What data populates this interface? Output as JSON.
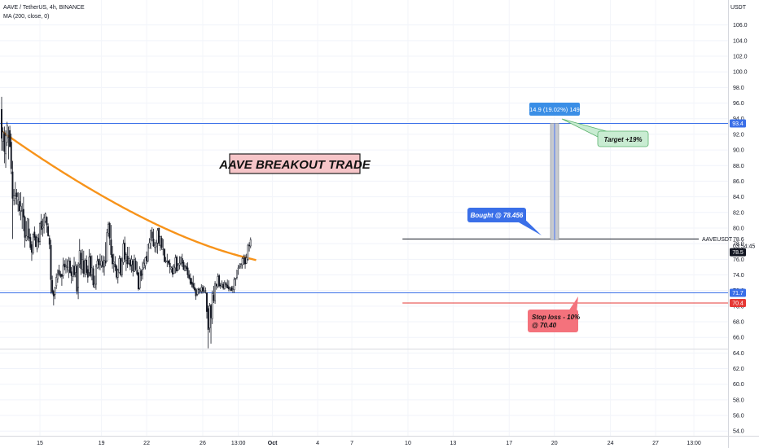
{
  "header": {
    "symbol_line": "AAVE / TetherUS, 4h, BINANCE",
    "indicator_line": "MA (200, close, 0)",
    "currency": "USDT"
  },
  "chart_data": {
    "type": "candlestick",
    "symbol": "AAVEUSDT",
    "title": "AAVE BREAKOUT TRADE",
    "ylim": [
      53.4,
      109.2
    ],
    "y_ticks": [
      54,
      56,
      58,
      60,
      62,
      64,
      66,
      68,
      70,
      72,
      74,
      76,
      78,
      80,
      82,
      84,
      86,
      88,
      90,
      92,
      94,
      96,
      98,
      100,
      102,
      104,
      106
    ],
    "x_tick_labels": [
      "15",
      "19",
      "22",
      "26",
      "13:00",
      "Oct",
      "4",
      "7",
      "10",
      "13",
      "17",
      "20",
      "24",
      "27",
      "13:00"
    ],
    "x_tick_bar_index": [
      28,
      73,
      106,
      147,
      173,
      198,
      231,
      256,
      297,
      330,
      371,
      404,
      445,
      478,
      506
    ],
    "moving_average": {
      "label": "MA (200, close, 0)",
      "color": "#f7931a",
      "start_value": 92.4,
      "end_value": 75.9
    },
    "price_levels": [
      {
        "value": 93.4,
        "label": "93.4",
        "color": "#3a6fe8"
      },
      {
        "value": 71.7,
        "label": "71.7",
        "color": "#3a6fe8"
      },
      {
        "value": 70.4,
        "label": "70.4",
        "color": "#e53935"
      },
      {
        "value": 78.6,
        "label": "78.6",
        "color": "#131722"
      }
    ],
    "last_price": {
      "value": 78.5,
      "label": "78.5",
      "symbol": "AAVEUSDT",
      "countdown": "03:54:45"
    },
    "measure": {
      "from": 78.5,
      "to": 93.4,
      "label": "14.9 (19.02%) 149"
    },
    "annotations": {
      "bought": "Bought  @ 78.456",
      "target": "Target  +19%",
      "stop_line1": "Stop loss - 10%",
      "stop_line2": "@ 70.40"
    },
    "candles": [
      [
        95.2,
        96.8,
        89.9,
        91.5
      ],
      [
        91.1,
        92.9,
        89.9,
        92.3
      ],
      [
        92.1,
        93.0,
        88.3,
        89.8
      ],
      [
        89.5,
        92.5,
        87.7,
        91.8
      ],
      [
        91.0,
        93.6,
        90.5,
        93.2
      ],
      [
        91.6,
        93.0,
        88.8,
        91.6
      ],
      [
        92.5,
        93.1,
        90.4,
        90.4
      ],
      [
        91.0,
        92.1,
        86.9,
        87.6
      ],
      [
        87.2,
        88.6,
        78.6,
        83.8
      ],
      [
        83.5,
        85.0,
        82.9,
        84.1
      ],
      [
        83.8,
        85.9,
        83.0,
        84.1
      ],
      [
        84.5,
        85.0,
        83.0,
        84.0
      ],
      [
        83.0,
        84.6,
        82.1,
        83.6
      ],
      [
        83.4,
        84.5,
        81.6,
        82.2
      ],
      [
        82.2,
        84.6,
        81.0,
        82.8
      ],
      [
        82.1,
        83.2,
        79.9,
        82.2
      ],
      [
        82.4,
        84.0,
        79.6,
        81.4
      ],
      [
        81.4,
        81.6,
        77.5,
        78.8
      ],
      [
        78.4,
        80.9,
        78.3,
        79.0
      ],
      [
        78.9,
        81.3,
        78.4,
        81.2
      ],
      [
        79.9,
        81.2,
        78.3,
        78.7
      ],
      [
        78.8,
        79.3,
        77.2,
        77.5
      ],
      [
        77.9,
        78.3,
        75.8,
        76.9
      ],
      [
        76.8,
        79.3,
        76.6,
        79.2
      ],
      [
        79.5,
        80.2,
        78.4,
        78.8
      ],
      [
        78.9,
        79.2,
        77.6,
        77.6
      ],
      [
        77.3,
        79.2,
        76.9,
        78.8
      ],
      [
        78.7,
        79.3,
        77.5,
        78.2
      ],
      [
        78.3,
        80.7,
        77.8,
        80.6
      ],
      [
        80.9,
        81.8,
        79.1,
        79.8
      ],
      [
        80.0,
        81.2,
        78.9,
        80.2
      ],
      [
        80.4,
        81.8,
        79.3,
        81.3
      ],
      [
        80.9,
        82.0,
        80.6,
        81.8
      ],
      [
        81.4,
        81.5,
        79.4,
        80.4
      ],
      [
        80.2,
        80.6,
        78.9,
        79.0
      ],
      [
        78.7,
        79.1,
        77.3,
        77.9
      ],
      [
        77.8,
        78.5,
        71.6,
        73.4
      ],
      [
        73.3,
        73.9,
        71.5,
        71.8
      ],
      [
        71.9,
        72.1,
        70.1,
        71.3
      ],
      [
        71.5,
        72.5,
        70.9,
        72.3
      ],
      [
        72.6,
        74.2,
        72.2,
        73.7
      ],
      [
        73.5,
        74.7,
        73.0,
        74.0
      ],
      [
        74.6,
        75.3,
        73.9,
        74.1
      ],
      [
        74.1,
        74.5,
        73.6,
        73.8
      ],
      [
        74.1,
        74.1,
        72.6,
        73.8
      ],
      [
        73.9,
        76.2,
        73.5,
        75.2
      ],
      [
        75.4,
        75.9,
        74.6,
        75.0
      ],
      [
        75.1,
        76.1,
        74.2,
        75.2
      ],
      [
        75.0,
        76.0,
        74.3,
        75.0
      ],
      [
        74.6,
        76.3,
        73.6,
        75.8
      ],
      [
        75.8,
        76.2,
        74.2,
        74.3
      ],
      [
        74.4,
        75.0,
        72.9,
        73.9
      ],
      [
        73.8,
        75.3,
        73.2,
        75.1
      ],
      [
        75.1,
        76.3,
        73.7,
        74.0
      ],
      [
        74.3,
        75.7,
        73.7,
        75.2
      ],
      [
        75.1,
        75.4,
        71.5,
        71.9
      ],
      [
        72.4,
        75.6,
        70.9,
        75.2
      ],
      [
        75.4,
        78.6,
        74.9,
        77.1
      ],
      [
        76.8,
        77.2,
        74.0,
        74.8
      ],
      [
        74.7,
        77.3,
        74.2,
        76.0
      ],
      [
        75.8,
        77.1,
        73.7,
        74.2
      ],
      [
        74.1,
        76.1,
        73.7,
        75.9
      ],
      [
        75.9,
        76.5,
        74.0,
        74.3
      ],
      [
        74.7,
        75.2,
        73.0,
        73.7
      ],
      [
        74.3,
        77.3,
        73.8,
        76.3
      ],
      [
        76.4,
        76.8,
        73.7,
        73.9
      ],
      [
        74.0,
        76.5,
        73.3,
        74.9
      ],
      [
        74.8,
        75.2,
        72.4,
        72.7
      ],
      [
        72.4,
        73.9,
        72.3,
        72.9
      ],
      [
        72.8,
        75.4,
        72.1,
        75.1
      ],
      [
        74.9,
        76.5,
        74.8,
        75.8
      ],
      [
        76.0,
        76.1,
        74.7,
        75.3
      ],
      [
        75.3,
        76.7,
        74.6,
        75.4
      ],
      [
        75.2,
        76.5,
        74.9,
        75.8
      ],
      [
        75.7,
        76.5,
        74.3,
        75.0
      ],
      [
        75.0,
        76.4,
        73.9,
        75.9
      ],
      [
        75.8,
        78.2,
        75.1,
        75.5
      ],
      [
        75.8,
        79.9,
        75.7,
        79.4
      ],
      [
        79.3,
        80.8,
        78.9,
        80.5
      ],
      [
        80.6,
        80.8,
        77.8,
        78.7
      ],
      [
        78.5,
        80.4,
        76.2,
        76.6
      ],
      [
        76.6,
        77.7,
        74.8,
        75.4
      ],
      [
        75.5,
        76.7,
        74.3,
        75.7
      ],
      [
        75.4,
        76.4,
        74.5,
        75.0
      ],
      [
        75.1,
        75.3,
        73.4,
        73.7
      ],
      [
        73.7,
        74.8,
        72.9,
        74.6
      ],
      [
        74.3,
        76.5,
        74.2,
        76.1
      ],
      [
        76.1,
        76.4,
        73.8,
        74.0
      ],
      [
        74.0,
        76.2,
        73.7,
        75.8
      ],
      [
        75.6,
        78.5,
        75.3,
        78.0
      ],
      [
        78.1,
        78.9,
        75.6,
        76.0
      ],
      [
        75.9,
        76.9,
        74.5,
        76.6
      ],
      [
        76.4,
        77.6,
        74.9,
        75.4
      ],
      [
        75.5,
        77.6,
        75.3,
        76.1
      ],
      [
        75.9,
        76.2,
        74.6,
        75.1
      ],
      [
        75.3,
        76.5,
        74.3,
        76.0
      ],
      [
        75.8,
        76.0,
        73.8,
        74.5
      ],
      [
        74.4,
        76.6,
        74.4,
        76.0
      ],
      [
        75.8,
        76.2,
        74.5,
        74.7
      ],
      [
        74.6,
        75.7,
        73.9,
        74.1
      ],
      [
        74.3,
        74.3,
        72.0,
        72.2
      ],
      [
        72.3,
        75.1,
        72.1,
        74.8
      ],
      [
        74.5,
        74.7,
        73.2,
        73.9
      ],
      [
        74.1,
        75.7,
        73.4,
        74.7
      ],
      [
        74.9,
        76.0,
        74.7,
        75.5
      ],
      [
        75.2,
        76.3,
        74.7,
        76.2
      ],
      [
        76.4,
        77.0,
        75.4,
        75.8
      ],
      [
        75.8,
        77.9,
        75.6,
        77.9
      ],
      [
        77.4,
        78.7,
        77.4,
        78.1
      ],
      [
        78.5,
        79.8,
        77.3,
        79.7
      ],
      [
        79.5,
        80.1,
        78.3,
        78.7
      ],
      [
        78.6,
        79.9,
        77.6,
        77.7
      ],
      [
        77.5,
        78.2,
        76.9,
        77.8
      ],
      [
        77.6,
        78.5,
        76.8,
        78.1
      ],
      [
        78.1,
        80.0,
        76.7,
        79.7
      ],
      [
        80.0,
        80.0,
        77.7,
        78.0
      ],
      [
        77.8,
        79.0,
        77.1,
        78.9
      ],
      [
        78.7,
        79.0,
        77.2,
        77.5
      ],
      [
        77.3,
        78.6,
        76.5,
        77.3
      ],
      [
        77.3,
        77.4,
        75.6,
        75.7
      ],
      [
        75.8,
        76.3,
        75.5,
        75.8
      ],
      [
        75.7,
        76.7,
        75.0,
        75.8
      ],
      [
        75.8,
        75.9,
        75.3,
        75.5
      ],
      [
        75.5,
        76.0,
        74.2,
        75.0
      ],
      [
        74.7,
        75.1,
        74.3,
        74.9
      ],
      [
        74.9,
        75.2,
        73.7,
        74.1
      ],
      [
        74.2,
        75.4,
        74.1,
        75.1
      ],
      [
        74.9,
        76.6,
        74.2,
        76.2
      ],
      [
        76.3,
        76.5,
        74.3,
        74.5
      ],
      [
        74.6,
        75.5,
        74.5,
        75.2
      ],
      [
        75.3,
        76.4,
        74.7,
        75.5
      ],
      [
        75.5,
        76.4,
        75.2,
        76.2
      ],
      [
        76.1,
        76.7,
        75.0,
        75.5
      ],
      [
        75.6,
        75.9,
        74.6,
        74.7
      ],
      [
        74.5,
        75.3,
        74.5,
        75.0
      ],
      [
        75.1,
        75.5,
        74.5,
        74.8
      ],
      [
        74.9,
        75.6,
        73.6,
        74.0
      ],
      [
        74.0,
        74.6,
        73.4,
        73.6
      ],
      [
        73.6,
        74.2,
        72.7,
        72.9
      ],
      [
        73.1,
        73.6,
        72.4,
        72.8
      ],
      [
        72.9,
        73.9,
        72.2,
        72.4
      ],
      [
        72.4,
        73.0,
        71.9,
        72.1
      ],
      [
        72.1,
        72.3,
        70.8,
        71.3
      ],
      [
        71.5,
        72.2,
        71.3,
        72.2
      ],
      [
        72.2,
        72.4,
        71.5,
        72.1
      ],
      [
        72.0,
        72.3,
        71.6,
        71.9
      ],
      [
        71.9,
        72.8,
        71.6,
        72.4
      ],
      [
        72.4,
        72.7,
        71.6,
        71.9
      ],
      [
        71.7,
        72.6,
        71.7,
        71.9
      ],
      [
        72.0,
        72.4,
        71.6,
        72.0
      ],
      [
        71.7,
        71.8,
        68.4,
        69.3
      ],
      [
        69.7,
        70.1,
        64.6,
        67.0
      ],
      [
        67.2,
        70.4,
        66.6,
        70.0
      ],
      [
        70.1,
        70.3,
        65.2,
        68.5
      ],
      [
        68.4,
        72.0,
        67.7,
        71.6
      ],
      [
        71.4,
        72.6,
        70.4,
        70.7
      ],
      [
        70.7,
        73.2,
        70.3,
        72.9
      ],
      [
        72.8,
        72.9,
        72.1,
        72.6
      ],
      [
        72.5,
        74.2,
        72.3,
        73.8
      ],
      [
        73.9,
        74.1,
        72.4,
        72.6
      ],
      [
        72.7,
        73.0,
        72.2,
        72.6
      ],
      [
        72.5,
        73.3,
        72.4,
        72.8
      ],
      [
        72.8,
        73.1,
        72.1,
        72.3
      ],
      [
        72.2,
        73.3,
        72.1,
        73.0
      ],
      [
        72.9,
        73.1,
        72.4,
        72.7
      ],
      [
        72.7,
        73.4,
        72.3,
        72.3
      ],
      [
        72.5,
        73.3,
        71.9,
        72.2
      ],
      [
        72.1,
        72.4,
        71.9,
        72.3
      ],
      [
        72.4,
        72.6,
        71.9,
        72.0
      ],
      [
        72.1,
        72.6,
        71.7,
        72.2
      ],
      [
        72.1,
        73.7,
        71.7,
        73.4
      ],
      [
        73.5,
        73.6,
        72.6,
        73.6
      ],
      [
        73.7,
        74.6,
        73.4,
        74.6
      ],
      [
        74.8,
        75.3,
        74.0,
        74.9
      ],
      [
        75.0,
        75.5,
        74.8,
        75.1
      ],
      [
        75.3,
        75.5,
        74.8,
        75.4
      ],
      [
        75.3,
        76.3,
        74.8,
        76.1
      ],
      [
        76.1,
        76.6,
        75.3,
        76.2
      ],
      [
        76.2,
        76.6,
        74.8,
        75.4
      ],
      [
        75.5,
        76.7,
        75.4,
        76.2
      ],
      [
        76.0,
        78.0,
        75.8,
        77.8
      ],
      [
        77.8,
        78.2,
        77.0,
        77.7
      ],
      [
        77.7,
        78.8,
        77.4,
        78.5
      ]
    ]
  }
}
